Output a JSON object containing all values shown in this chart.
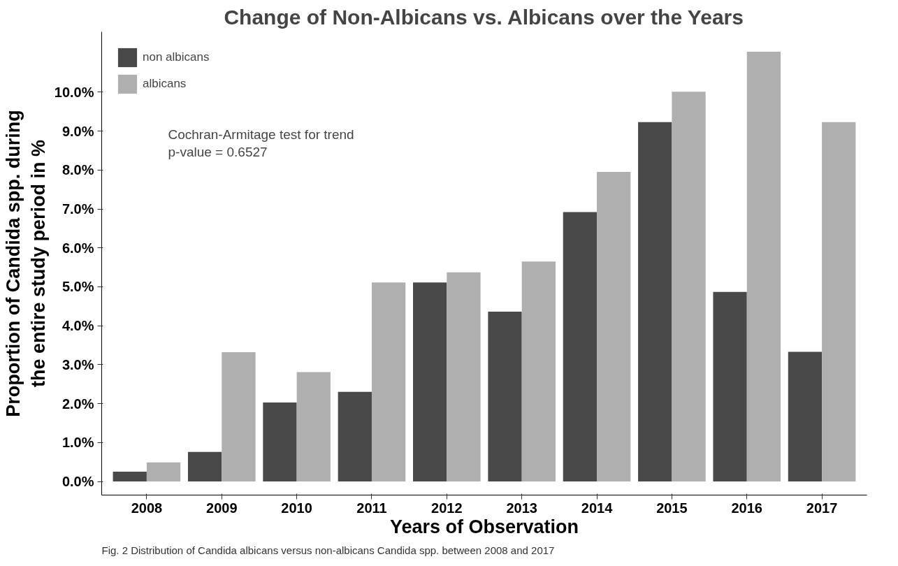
{
  "chart_data": {
    "type": "bar",
    "title": "Change of Non-Albicans vs. Albicans over the Years",
    "xlabel": "Years of Observation",
    "ylabel": "Proportion of Candida spp. during\nthe entire study period in %",
    "categories": [
      "2008",
      "2009",
      "2010",
      "2011",
      "2012",
      "2013",
      "2014",
      "2015",
      "2016",
      "2017"
    ],
    "series": [
      {
        "name": "non albicans",
        "color": "#494949",
        "values": [
          0.25,
          0.76,
          2.03,
          2.3,
          5.11,
          4.36,
          6.92,
          9.23,
          4.87,
          3.33
        ]
      },
      {
        "name": "albicans",
        "color": "#afafaf",
        "values": [
          0.49,
          3.32,
          2.81,
          5.11,
          5.37,
          5.65,
          7.95,
          10.01,
          11.04,
          9.23
        ]
      }
    ],
    "ylim": [
      -0.35,
      11.55
    ],
    "yticks": [
      {
        "value": 0,
        "label": "0.0%"
      },
      {
        "value": 1,
        "label": "1.0%"
      },
      {
        "value": 2,
        "label": "2.0%"
      },
      {
        "value": 3,
        "label": "3.0%"
      },
      {
        "value": 4,
        "label": "4.0%"
      },
      {
        "value": 5,
        "label": "5.0%"
      },
      {
        "value": 6,
        "label": "6.0%"
      },
      {
        "value": 7,
        "label": "7.0%"
      },
      {
        "value": 8,
        "label": "8.0%"
      },
      {
        "value": 9,
        "label": "9.0%"
      },
      {
        "value": 10,
        "label": "10.0%"
      }
    ],
    "grid": false,
    "legend": "top left",
    "annotations": [
      "Cochran-Armitage test for trend\n p-value = 0.6527",
      "Fig. 2  Distribution of Candida albicans versus non-albicans Candida spp. between 2008 and 2017"
    ]
  }
}
